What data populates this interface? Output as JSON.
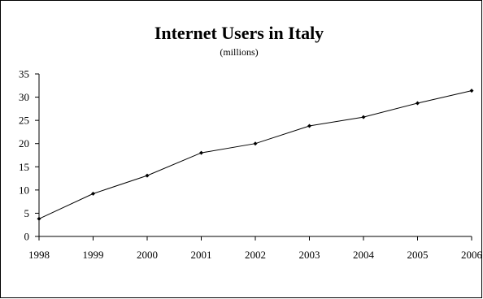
{
  "chart_data": {
    "type": "line",
    "title": "Internet Users in Italy",
    "subtitle": "(millions)",
    "xlabel": "",
    "ylabel": "",
    "categories": [
      "1998",
      "1999",
      "2000",
      "2001",
      "2002",
      "2003",
      "2004",
      "2005",
      "2006"
    ],
    "series": [
      {
        "values": [
          3.8,
          9.2,
          13.1,
          18.0,
          20.0,
          23.8,
          25.7,
          28.7,
          31.4
        ]
      }
    ],
    "ylim": [
      0,
      35
    ],
    "yticks": [
      0,
      5,
      10,
      15,
      20,
      25,
      30,
      35
    ],
    "grid": false,
    "legend": "none",
    "line_color": "#000000"
  }
}
